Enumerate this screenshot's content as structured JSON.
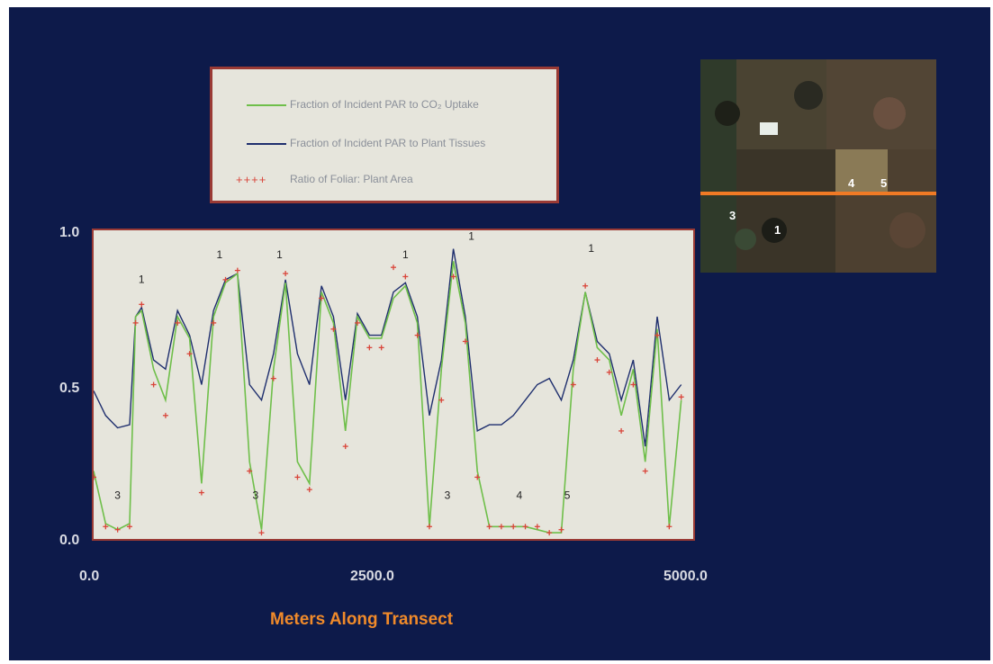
{
  "legend": {
    "items": [
      {
        "label": "Fraction of Incident PAR to CO₂ Uptake",
        "color": "#6fbf4a",
        "kind": "line"
      },
      {
        "label": "Fraction of Incident PAR to Plant Tissues",
        "color": "#1f2f6e",
        "kind": "line"
      },
      {
        "label": "Ratio of Foliar: Plant Area",
        "color": "#d9453a",
        "kind": "dots",
        "symbol": "++++"
      }
    ]
  },
  "chart_data": {
    "type": "line",
    "xlabel": "Meters Along Transect",
    "ylabel": "",
    "xlim": [
      0,
      5000
    ],
    "ylim": [
      0,
      1
    ],
    "xticks": [
      "0.0",
      "2500.0",
      "5000.0"
    ],
    "yticks": [
      "0.0",
      "0.5",
      "1.0"
    ],
    "grid": false,
    "x": [
      0,
      100,
      200,
      300,
      350,
      400,
      500,
      600,
      700,
      800,
      900,
      1000,
      1100,
      1200,
      1300,
      1400,
      1500,
      1600,
      1700,
      1800,
      1900,
      2000,
      2100,
      2200,
      2300,
      2400,
      2500,
      2600,
      2700,
      2800,
      2900,
      3000,
      3100,
      3200,
      3300,
      3400,
      3500,
      3600,
      3700,
      3800,
      3900,
      4000,
      4100,
      4200,
      4300,
      4400,
      4500,
      4600,
      4700,
      4800,
      4900
    ],
    "series": [
      {
        "name": "Fraction of Incident PAR to CO₂ Uptake",
        "values": [
          0.22,
          0.05,
          0.03,
          0.05,
          0.72,
          0.74,
          0.55,
          0.45,
          0.72,
          0.65,
          0.18,
          0.72,
          0.83,
          0.86,
          0.25,
          0.03,
          0.55,
          0.83,
          0.25,
          0.18,
          0.8,
          0.7,
          0.35,
          0.72,
          0.65,
          0.65,
          0.78,
          0.82,
          0.7,
          0.04,
          0.55,
          0.9,
          0.7,
          0.22,
          0.04,
          0.04,
          0.04,
          0.04,
          0.03,
          0.02,
          0.02,
          0.55,
          0.8,
          0.62,
          0.58,
          0.4,
          0.55,
          0.25,
          0.68,
          0.04,
          0.45
        ]
      },
      {
        "name": "Fraction of Incident PAR to Plant Tissues",
        "values": [
          0.48,
          0.4,
          0.36,
          0.37,
          0.72,
          0.75,
          0.58,
          0.55,
          0.74,
          0.66,
          0.5,
          0.74,
          0.84,
          0.86,
          0.5,
          0.45,
          0.6,
          0.84,
          0.6,
          0.5,
          0.82,
          0.72,
          0.45,
          0.73,
          0.66,
          0.66,
          0.8,
          0.83,
          0.72,
          0.4,
          0.58,
          0.94,
          0.72,
          0.35,
          0.37,
          0.37,
          0.4,
          0.45,
          0.5,
          0.52,
          0.45,
          0.58,
          0.8,
          0.64,
          0.6,
          0.45,
          0.58,
          0.3,
          0.72,
          0.45,
          0.5
        ]
      },
      {
        "name": "Ratio of Foliar: Plant Area",
        "values": [
          0.2,
          0.04,
          0.03,
          0.04,
          0.7,
          0.76,
          0.5,
          0.4,
          0.7,
          0.6,
          0.15,
          0.7,
          0.84,
          0.87,
          0.22,
          0.02,
          0.52,
          0.86,
          0.2,
          0.16,
          0.78,
          0.68,
          0.3,
          0.7,
          0.62,
          0.62,
          0.88,
          0.85,
          0.66,
          0.04,
          0.45,
          0.85,
          0.64,
          0.2,
          0.04,
          0.04,
          0.04,
          0.04,
          0.04,
          0.02,
          0.03,
          0.5,
          0.82,
          0.58,
          0.54,
          0.35,
          0.5,
          0.22,
          0.66,
          0.04,
          0.46
        ]
      }
    ],
    "annotations": [
      {
        "text": "1",
        "x": 400,
        "y": 0.83
      },
      {
        "text": "1",
        "x": 1050,
        "y": 0.91
      },
      {
        "text": "1",
        "x": 1550,
        "y": 0.91
      },
      {
        "text": "1",
        "x": 2600,
        "y": 0.91
      },
      {
        "text": "1",
        "x": 3150,
        "y": 0.97
      },
      {
        "text": "1",
        "x": 4150,
        "y": 0.93
      },
      {
        "text": "3",
        "x": 200,
        "y": 0.13
      },
      {
        "text": "3",
        "x": 1350,
        "y": 0.13
      },
      {
        "text": "3",
        "x": 2950,
        "y": 0.13
      },
      {
        "text": "4",
        "x": 3550,
        "y": 0.13
      },
      {
        "text": "5",
        "x": 3950,
        "y": 0.13
      }
    ]
  },
  "photo": {
    "labels": [
      "3",
      "1",
      "4",
      "5"
    ],
    "transect_color": "#f07a25"
  }
}
